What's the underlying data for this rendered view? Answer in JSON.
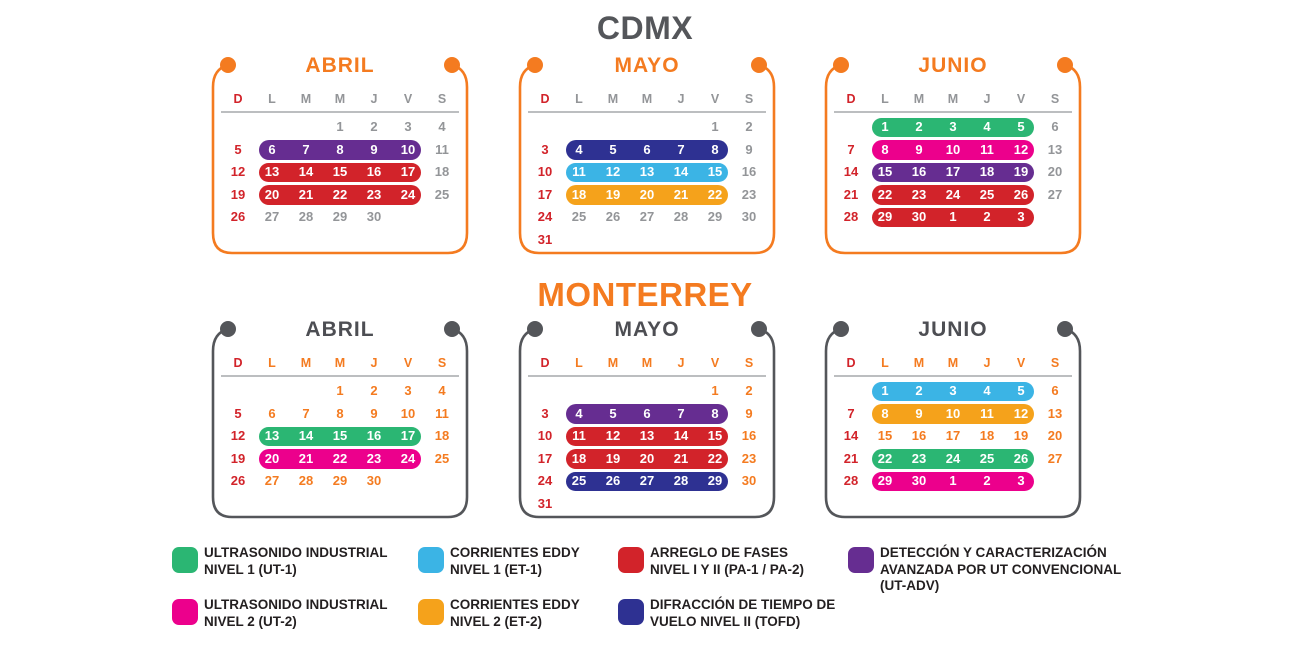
{
  "titles": {
    "cdmx": "CDMX",
    "monterrey": "MONTERREY"
  },
  "day_headers": [
    "D",
    "L",
    "M",
    "M",
    "J",
    "V",
    "S"
  ],
  "colors": {
    "orange": "#F47B20",
    "red": "#D2232A",
    "gray_day": "#939598",
    "dark": "#54565A",
    "rule": "#BCBEC0",
    "legend_text": "#231F20",
    "bars": {
      "green": "#2BB673",
      "magenta": "#EC008C",
      "lightblue": "#3BB4E5",
      "orange_bar": "#F5A21B",
      "red": "#D2232A",
      "navy": "#2E3192",
      "purple": "#662D91"
    }
  },
  "sections": [
    {
      "id": "cdmx",
      "title": "CDMX",
      "title_color": "#54565A",
      "frame_color": "#F47B20",
      "month_title_color": "#F47B20",
      "weekday_color": "#939598",
      "plain_day_color": "#939598",
      "sunday_color": "#D2232A",
      "months": [
        {
          "name": "ABRIL",
          "weeks": [
            {
              "days": [
                "",
                "",
                "",
                "1",
                "2",
                "3",
                "4"
              ]
            },
            {
              "days": [
                "5",
                "6",
                "7",
                "8",
                "9",
                "10",
                "11"
              ],
              "bar": {
                "from": 1,
                "to": 5,
                "color": "purple"
              }
            },
            {
              "days": [
                "12",
                "13",
                "14",
                "15",
                "16",
                "17",
                "18"
              ],
              "bar": {
                "from": 1,
                "to": 5,
                "color": "red"
              }
            },
            {
              "days": [
                "19",
                "20",
                "21",
                "22",
                "23",
                "24",
                "25"
              ],
              "bar": {
                "from": 1,
                "to": 5,
                "color": "red"
              }
            },
            {
              "days": [
                "26",
                "27",
                "28",
                "29",
                "30",
                "",
                ""
              ]
            }
          ]
        },
        {
          "name": "MAYO",
          "weeks": [
            {
              "days": [
                "",
                "",
                "",
                "",
                "",
                "1",
                "2"
              ]
            },
            {
              "days": [
                "3",
                "4",
                "5",
                "6",
                "7",
                "8",
                "9"
              ],
              "bar": {
                "from": 1,
                "to": 5,
                "color": "navy"
              }
            },
            {
              "days": [
                "10",
                "11",
                "12",
                "13",
                "14",
                "15",
                "16"
              ],
              "bar": {
                "from": 1,
                "to": 5,
                "color": "lightblue"
              }
            },
            {
              "days": [
                "17",
                "18",
                "19",
                "20",
                "21",
                "22",
                "23"
              ],
              "bar": {
                "from": 1,
                "to": 5,
                "color": "orange_bar"
              }
            },
            {
              "days": [
                "24",
                "25",
                "26",
                "27",
                "28",
                "29",
                "30"
              ]
            },
            {
              "days": [
                "31",
                "",
                "",
                "",
                "",
                "",
                ""
              ]
            }
          ]
        },
        {
          "name": "JUNIO",
          "weeks": [
            {
              "days": [
                "",
                "1",
                "2",
                "3",
                "4",
                "5",
                "6"
              ],
              "bar": {
                "from": 1,
                "to": 5,
                "color": "green"
              }
            },
            {
              "days": [
                "7",
                "8",
                "9",
                "10",
                "11",
                "12",
                "13"
              ],
              "bar": {
                "from": 1,
                "to": 5,
                "color": "magenta"
              }
            },
            {
              "days": [
                "14",
                "15",
                "16",
                "17",
                "18",
                "19",
                "20"
              ],
              "bar": {
                "from": 1,
                "to": 5,
                "color": "purple"
              }
            },
            {
              "days": [
                "21",
                "22",
                "23",
                "24",
                "25",
                "26",
                "27"
              ],
              "bar": {
                "from": 1,
                "to": 5,
                "color": "red"
              }
            },
            {
              "days": [
                "28",
                "29",
                "30",
                "1",
                "2",
                "3",
                ""
              ],
              "bar": {
                "from": 1,
                "to": 5,
                "color": "red"
              }
            }
          ]
        }
      ]
    },
    {
      "id": "monterrey",
      "title": "MONTERREY",
      "title_color": "#F47B20",
      "frame_color": "#54565A",
      "month_title_color": "#4D4E53",
      "weekday_color": "#F47B20",
      "plain_day_color": "#F47B20",
      "sunday_color": "#D2232A",
      "months": [
        {
          "name": "ABRIL",
          "weeks": [
            {
              "days": [
                "",
                "",
                "",
                "1",
                "2",
                "3",
                "4"
              ]
            },
            {
              "days": [
                "5",
                "6",
                "7",
                "8",
                "9",
                "10",
                "11"
              ]
            },
            {
              "days": [
                "12",
                "13",
                "14",
                "15",
                "16",
                "17",
                "18"
              ],
              "bar": {
                "from": 1,
                "to": 5,
                "color": "green"
              }
            },
            {
              "days": [
                "19",
                "20",
                "21",
                "22",
                "23",
                "24",
                "25"
              ],
              "bar": {
                "from": 1,
                "to": 5,
                "color": "magenta"
              }
            },
            {
              "days": [
                "26",
                "27",
                "28",
                "29",
                "30",
                "",
                ""
              ]
            }
          ]
        },
        {
          "name": "MAYO",
          "weeks": [
            {
              "days": [
                "",
                "",
                "",
                "",
                "",
                "1",
                "2"
              ]
            },
            {
              "days": [
                "3",
                "4",
                "5",
                "6",
                "7",
                "8",
                "9"
              ],
              "bar": {
                "from": 1,
                "to": 5,
                "color": "purple"
              }
            },
            {
              "days": [
                "10",
                "11",
                "12",
                "13",
                "14",
                "15",
                "16"
              ],
              "bar": {
                "from": 1,
                "to": 5,
                "color": "red"
              }
            },
            {
              "days": [
                "17",
                "18",
                "19",
                "20",
                "21",
                "22",
                "23"
              ],
              "bar": {
                "from": 1,
                "to": 5,
                "color": "red"
              }
            },
            {
              "days": [
                "24",
                "25",
                "26",
                "27",
                "28",
                "29",
                "30"
              ],
              "bar": {
                "from": 1,
                "to": 5,
                "color": "navy"
              }
            },
            {
              "days": [
                "31",
                "",
                "",
                "",
                "",
                "",
                ""
              ]
            }
          ]
        },
        {
          "name": "JUNIO",
          "weeks": [
            {
              "days": [
                "",
                "1",
                "2",
                "3",
                "4",
                "5",
                "6"
              ],
              "bar": {
                "from": 1,
                "to": 5,
                "color": "lightblue"
              }
            },
            {
              "days": [
                "7",
                "8",
                "9",
                "10",
                "11",
                "12",
                "13"
              ],
              "bar": {
                "from": 1,
                "to": 5,
                "color": "orange_bar"
              }
            },
            {
              "days": [
                "14",
                "15",
                "16",
                "17",
                "18",
                "19",
                "20"
              ]
            },
            {
              "days": [
                "21",
                "22",
                "23",
                "24",
                "25",
                "26",
                "27"
              ],
              "bar": {
                "from": 1,
                "to": 5,
                "color": "green"
              }
            },
            {
              "days": [
                "28",
                "29",
                "30",
                "1",
                "2",
                "3",
                ""
              ],
              "bar": {
                "from": 1,
                "to": 5,
                "color": "magenta"
              }
            }
          ]
        }
      ]
    }
  ],
  "legend": {
    "items": [
      {
        "color": "green",
        "lines": [
          "ULTRASONIDO INDUSTRIAL",
          "NIVEL 1 (UT-1)"
        ]
      },
      {
        "color": "lightblue",
        "lines": [
          "CORRIENTES EDDY",
          "NIVEL 1 (ET-1)"
        ]
      },
      {
        "color": "red",
        "lines": [
          "ARREGLO DE FASES",
          "NIVEL I Y II (PA-1 / PA-2)"
        ]
      },
      {
        "color": "purple",
        "lines": [
          "DETECCIÓN Y CARACTERIZACIÓN",
          "AVANZADA POR UT CONVENCIONAL",
          "(UT-ADV)"
        ]
      },
      {
        "color": "magenta",
        "lines": [
          "ULTRASONIDO INDUSTRIAL",
          "NIVEL 2 (UT-2)"
        ]
      },
      {
        "color": "orange_bar",
        "lines": [
          "CORRIENTES EDDY",
          "NIVEL 2 (ET-2)"
        ]
      },
      {
        "color": "navy",
        "lines": [
          "DIFRACCIÓN DE TIEMPO DE",
          "VUELO NIVEL II (TOFD)"
        ]
      }
    ]
  }
}
